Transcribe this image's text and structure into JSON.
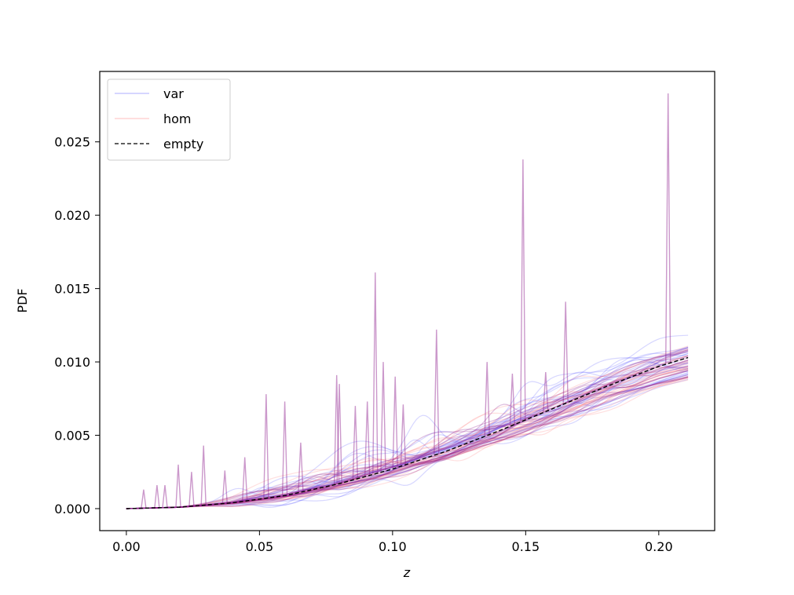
{
  "chart_data": {
    "type": "line",
    "title": "",
    "xlabel": "z",
    "ylabel": "PDF",
    "xlim": [
      -0.01,
      0.221
    ],
    "ylim": [
      -0.0015,
      0.0298
    ],
    "xticks": [
      0.0,
      0.05,
      0.1,
      0.15,
      0.2
    ],
    "xtick_labels": [
      "0.00",
      "0.05",
      "0.10",
      "0.15",
      "0.20"
    ],
    "yticks": [
      0.0,
      0.005,
      0.01,
      0.015,
      0.02,
      0.025
    ],
    "ytick_labels": [
      "0.000",
      "0.005",
      "0.010",
      "0.015",
      "0.020",
      "0.025"
    ],
    "grid": false,
    "legend_placement": "top-left",
    "colors": {
      "var": "#4b4bff",
      "hom": "#ff7f7f",
      "overlap": "#8b1a8b",
      "empty": "#000000"
    },
    "series": [
      {
        "name": "var",
        "style": "solid",
        "alpha": 0.2,
        "role": "bundle"
      },
      {
        "name": "hom",
        "style": "solid",
        "alpha": 0.2,
        "role": "bundle"
      },
      {
        "name": "empty",
        "style": "dashed",
        "x": [
          0.0,
          0.02,
          0.04,
          0.06,
          0.08,
          0.1,
          0.12,
          0.14,
          0.16,
          0.18,
          0.2,
          0.211
        ],
        "y": [
          0.0,
          0.0001,
          0.0004,
          0.0009,
          0.0017,
          0.0027,
          0.0039,
          0.0053,
          0.0068,
          0.0083,
          0.0097,
          0.0103
        ]
      }
    ],
    "spikes": [
      {
        "x": 0.0065,
        "y": 0.0013
      },
      {
        "x": 0.0115,
        "y": 0.0016
      },
      {
        "x": 0.0145,
        "y": 0.0016
      },
      {
        "x": 0.0195,
        "y": 0.003
      },
      {
        "x": 0.0245,
        "y": 0.0025
      },
      {
        "x": 0.029,
        "y": 0.0043
      },
      {
        "x": 0.037,
        "y": 0.0026
      },
      {
        "x": 0.0445,
        "y": 0.0035
      },
      {
        "x": 0.0525,
        "y": 0.0078
      },
      {
        "x": 0.0595,
        "y": 0.0073
      },
      {
        "x": 0.0655,
        "y": 0.0045
      },
      {
        "x": 0.079,
        "y": 0.0091
      },
      {
        "x": 0.08,
        "y": 0.0085
      },
      {
        "x": 0.086,
        "y": 0.007
      },
      {
        "x": 0.0905,
        "y": 0.0073
      },
      {
        "x": 0.0935,
        "y": 0.0161
      },
      {
        "x": 0.0965,
        "y": 0.01
      },
      {
        "x": 0.101,
        "y": 0.009
      },
      {
        "x": 0.104,
        "y": 0.0071
      },
      {
        "x": 0.1165,
        "y": 0.0122
      },
      {
        "x": 0.1355,
        "y": 0.01
      },
      {
        "x": 0.145,
        "y": 0.0092
      },
      {
        "x": 0.149,
        "y": 0.0238
      },
      {
        "x": 0.1575,
        "y": 0.0093
      },
      {
        "x": 0.165,
        "y": 0.0141
      },
      {
        "x": 0.2035,
        "y": 0.0283
      }
    ]
  }
}
